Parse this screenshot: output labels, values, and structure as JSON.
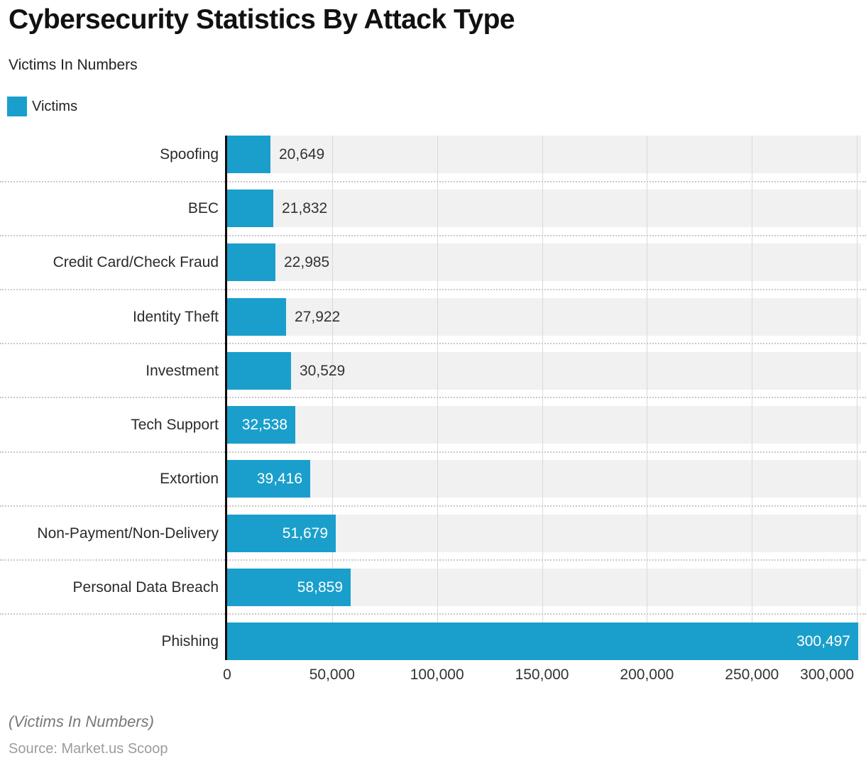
{
  "title": "Cybersecurity Statistics By Attack Type",
  "subtitle": "Victims In Numbers",
  "legend": {
    "label": "Victims"
  },
  "colors": {
    "accent": "#1A9FCC",
    "track": "#F1F1F1",
    "gridline": "#D9D9D9",
    "separator": "#C9C9C9",
    "axis": "#0B0B0B",
    "value_label_outside": "#333333",
    "value_label_inside": "#FFFFFF"
  },
  "footer": {
    "note": "(Victims In Numbers)",
    "source": "Source: Market.us Scoop"
  },
  "chart_data": {
    "type": "bar",
    "orientation": "horizontal",
    "title": "Cybersecurity Statistics By Attack Type",
    "subtitle": "Victims In Numbers",
    "legend_position": "top-left",
    "grid": "vertical-solid-gridlines with dotted row separators",
    "categories": [
      "Spoofing",
      "BEC",
      "Credit Card/Check Fraud",
      "Identity Theft",
      "Investment",
      "Tech Support",
      "Extortion",
      "Non-Payment/Non-Delivery",
      "Personal Data Breach",
      "Phishing"
    ],
    "series": [
      {
        "name": "Victims",
        "values": [
          20649,
          21832,
          22985,
          27922,
          30529,
          32538,
          39416,
          51679,
          58859,
          300497
        ]
      }
    ],
    "value_labels": [
      "20,649",
      "21,832",
      "22,985",
      "27,922",
      "30,529",
      "32,538",
      "39,416",
      "51,679",
      "58,859",
      "300,497"
    ],
    "x_tick_labels": [
      "0",
      "50,000",
      "100,000",
      "150,000",
      "200,000",
      "250,000",
      "300,000"
    ],
    "x_tick_values": [
      0,
      50000,
      100000,
      150000,
      200000,
      250000,
      300000
    ],
    "xlim": [
      0,
      302000
    ]
  }
}
